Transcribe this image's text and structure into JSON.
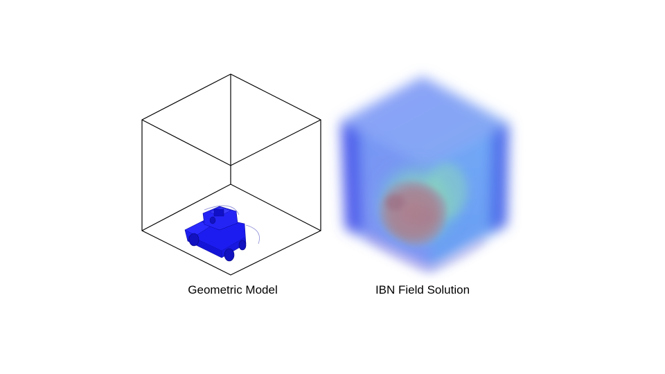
{
  "panels": {
    "left_caption": "Geometric Model",
    "right_caption": "IBN Field Solution"
  },
  "colors": {
    "wireframe": "#000000",
    "vehicle": "#1c1cf0",
    "vehicle_dark": "#0d0da8",
    "field_blue": "#5a8cf5",
    "field_deep": "#2e3fe0",
    "field_green": "#8fd9a8",
    "field_core": "#a07090"
  }
}
